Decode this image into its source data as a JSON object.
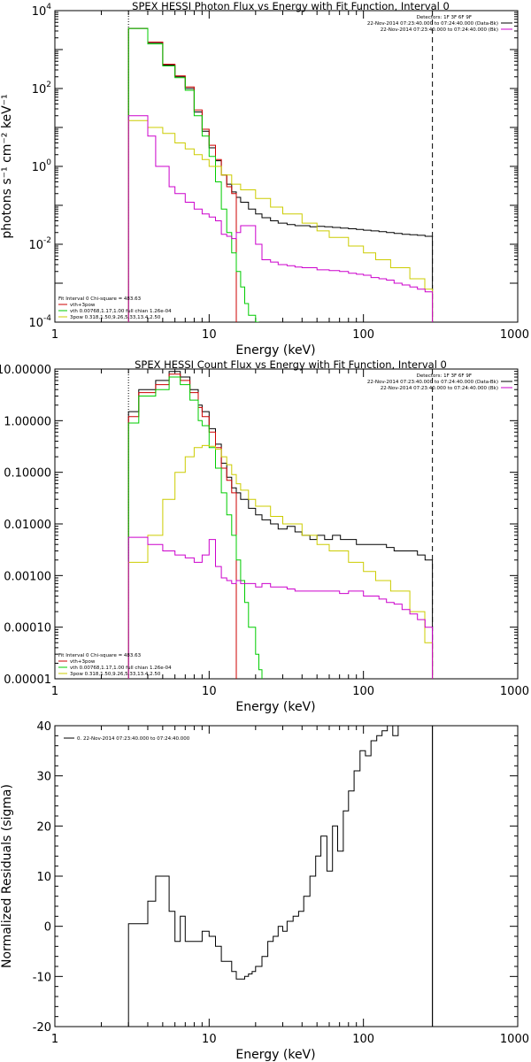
{
  "chart_data": [
    {
      "type": "line",
      "title": "SPEX HESSI Photon Flux vs Energy with Fit Function, Interval 0",
      "xlabel": "Energy (keV)",
      "ylabel": "photons s⁻¹ cm⁻² keV⁻¹",
      "xscale": "log",
      "yscale": "log",
      "xlim": [
        1,
        1000
      ],
      "ylim": [
        0.0001,
        10000
      ],
      "x_ticks": [
        "1",
        "10",
        "100",
        "1000"
      ],
      "y_ticks": [
        {
          "value": 0.0001,
          "base": "10",
          "exp": "-4"
        },
        {
          "value": 0.01,
          "base": "10",
          "exp": "-2"
        },
        {
          "value": 1,
          "base": "10",
          "exp": "0"
        },
        {
          "value": 100,
          "base": "10",
          "exp": "2"
        },
        {
          "value": 10000,
          "base": "10",
          "exp": "4"
        }
      ],
      "grid": false,
      "vlines": [
        {
          "x": 3,
          "style": "dotted"
        },
        {
          "x": 280,
          "style": "dashed"
        }
      ],
      "legend_top_right": [
        {
          "text": "Detectors: 1F 3F 6F 9F",
          "color": ""
        },
        {
          "text": "22-Nov-2014 07:23:40.000 to 07:24:40.000 (Data-Bk)",
          "color": "#000000"
        },
        {
          "text": "22-Nov-2014 07:23:40.000 to 07:24:40.000 (Bk)",
          "color": "#cc00cc"
        }
      ],
      "legend_bottom_left": [
        {
          "text": "Fit Interval 0   Chi-square = 483.63",
          "color": ""
        },
        {
          "text": "vth+3pow",
          "color": "#cc0000"
        },
        {
          "text": "vth 0.00768,1.17,1.00  full chian 1.26e-04",
          "color": "#00cc00"
        },
        {
          "text": "3pow 0.318,1.50,9.26,5.33,13.4,2.50",
          "color": "#cccc00"
        }
      ],
      "series": [
        {
          "color": "#000000",
          "x": [
            3,
            3.5,
            4,
            4.5,
            5,
            5.5,
            6,
            6.5,
            7,
            7.5,
            8,
            8.5,
            9,
            10,
            11,
            12,
            13,
            14,
            15,
            16,
            18,
            20,
            22,
            25,
            28,
            32,
            36,
            40,
            45,
            50,
            56,
            63,
            71,
            80,
            90,
            100,
            112,
            126,
            141,
            158,
            178,
            200,
            224,
            251,
            280
          ],
          "y": [
            3500,
            3500,
            1500,
            1500,
            400,
            400,
            200,
            200,
            100,
            100,
            25,
            25,
            8,
            3,
            1.4,
            0.6,
            0.35,
            0.22,
            0.16,
            0.12,
            0.08,
            0.06,
            0.048,
            0.04,
            0.035,
            0.032,
            0.03,
            0.03,
            0.028,
            0.029,
            0.028,
            0.027,
            0.026,
            0.025,
            0.024,
            0.023,
            0.022,
            0.021,
            0.02,
            0.019,
            0.018,
            0.0175,
            0.017,
            0.016,
            0.016
          ]
        },
        {
          "color": "#cc0000",
          "x": [
            3,
            3.5,
            4,
            4.5,
            5,
            5.5,
            6,
            6.5,
            7,
            7.5,
            8,
            8.5,
            9,
            10,
            11,
            12,
            13,
            14,
            15
          ],
          "y": [
            3500,
            3500,
            1550,
            1550,
            420,
            420,
            210,
            210,
            110,
            110,
            28,
            28,
            9,
            3.5,
            1.5,
            0.6,
            0.3,
            0.2,
            0.15
          ]
        },
        {
          "color": "#00cc00",
          "x": [
            3,
            3.5,
            4,
            4.5,
            5,
            5.5,
            6,
            6.5,
            7,
            7.5,
            8,
            8.5,
            9,
            10,
            11,
            12,
            13,
            14,
            15,
            16,
            17,
            18,
            20,
            21
          ],
          "y": [
            3500,
            3500,
            1400,
            1400,
            380,
            380,
            190,
            190,
            90,
            90,
            20,
            20,
            6,
            1.8,
            0.4,
            0.08,
            0.02,
            0.006,
            0.002,
            0.0008,
            0.0003,
            0.00015,
            0.0001,
            0.0001
          ]
        },
        {
          "color": "#cccc00",
          "x": [
            3,
            4,
            5,
            6,
            7,
            8,
            9,
            10,
            12,
            14,
            16,
            20,
            25,
            30,
            40,
            50,
            60,
            80,
            100,
            120,
            150,
            200,
            250,
            280
          ],
          "y": [
            15,
            10,
            7,
            4,
            2.8,
            2,
            1.5,
            1,
            0.6,
            0.35,
            0.25,
            0.15,
            0.09,
            0.06,
            0.035,
            0.022,
            0.015,
            0.009,
            0.006,
            0.004,
            0.0025,
            0.0013,
            0.0007,
            0.0001
          ]
        },
        {
          "color": "#cc00cc",
          "x": [
            3,
            3.5,
            4,
            4.5,
            5,
            5.5,
            6,
            7,
            8,
            9,
            10,
            11,
            12,
            13,
            14,
            15,
            16,
            18,
            20,
            22,
            25,
            28,
            32,
            36,
            40,
            50,
            60,
            70,
            80,
            90,
            100,
            112,
            126,
            141,
            158,
            178,
            200,
            224,
            251,
            280
          ],
          "y": [
            20,
            20,
            6,
            1,
            1,
            0.3,
            0.2,
            0.12,
            0.08,
            0.06,
            0.05,
            0.04,
            0.018,
            0.016,
            0.014,
            0.02,
            0.03,
            0.03,
            0.01,
            0.004,
            0.0035,
            0.003,
            0.0028,
            0.0026,
            0.0025,
            0.0022,
            0.0021,
            0.002,
            0.0018,
            0.0017,
            0.0016,
            0.0014,
            0.0013,
            0.0012,
            0.001,
            0.0009,
            0.0008,
            0.0007,
            0.0006,
            0.0005
          ]
        }
      ]
    },
    {
      "type": "line",
      "title": "SPEX HESSI Count Flux vs Energy with Fit Function, Interval 0",
      "xlabel": "Energy (keV)",
      "ylabel": "",
      "xscale": "log",
      "yscale": "log",
      "xlim": [
        1,
        1000
      ],
      "ylim": [
        1e-05,
        10
      ],
      "x_ticks": [
        "1",
        "10",
        "100",
        "1000"
      ],
      "y_ticks": [
        {
          "value": 1e-05,
          "label": "0.00001"
        },
        {
          "value": 0.0001,
          "label": "0.00010"
        },
        {
          "value": 0.001,
          "label": "0.00100"
        },
        {
          "value": 0.01,
          "label": "0.01000"
        },
        {
          "value": 0.1,
          "label": "0.10000"
        },
        {
          "value": 1,
          "label": "1.00000"
        },
        {
          "value": 10,
          "label": "10.00000"
        }
      ],
      "grid": false,
      "vlines": [
        {
          "x": 3,
          "style": "dotted"
        },
        {
          "x": 280,
          "style": "dashed"
        }
      ],
      "legend_top_right": [
        {
          "text": "Detectors: 1F 3F 6F 9F",
          "color": ""
        },
        {
          "text": "22-Nov-2014 07:23:40.000 to 07:24:40.000 (Data-Bk)",
          "color": "#000000"
        },
        {
          "text": "22-Nov-2014 07:23:40.000 to 07:24:40.000 (Bk)",
          "color": "#cc00cc"
        }
      ],
      "legend_bottom_left": [
        {
          "text": "Fit Interval 0   Chi-square = 483.63",
          "color": ""
        },
        {
          "text": "vth+3pow",
          "color": "#cc0000"
        },
        {
          "text": "vth 0.00768,1.17,1.00  full chian 1.26e-04",
          "color": "#00cc00"
        },
        {
          "text": "3pow 0.318,1.50,9.26,5.33,13.4,2.50",
          "color": "#cccc00"
        }
      ],
      "series": [
        {
          "color": "#000000",
          "x": [
            3,
            3.5,
            4,
            4.5,
            5,
            5.5,
            6,
            6.5,
            7,
            7.5,
            8,
            8.5,
            9,
            10,
            11,
            12,
            13,
            14,
            15,
            16,
            18,
            20,
            22,
            25,
            28,
            32,
            36,
            40,
            45,
            50,
            56,
            63,
            71,
            80,
            90,
            100,
            112,
            126,
            141,
            158,
            178,
            200,
            224,
            251,
            280
          ],
          "y": [
            1.5,
            4,
            4,
            6,
            6,
            9,
            9,
            7,
            7,
            4,
            4,
            2,
            1.5,
            0.7,
            0.35,
            0.15,
            0.08,
            0.05,
            0.04,
            0.03,
            0.02,
            0.015,
            0.012,
            0.01,
            0.008,
            0.009,
            0.007,
            0.006,
            0.005,
            0.006,
            0.005,
            0.006,
            0.005,
            0.005,
            0.004,
            0.004,
            0.004,
            0.004,
            0.0035,
            0.003,
            0.003,
            0.003,
            0.0025,
            0.002,
            0.002
          ]
        },
        {
          "color": "#cc0000",
          "x": [
            3,
            3.5,
            4,
            4.5,
            5,
            5.5,
            6,
            6.5,
            7,
            7.5,
            8,
            8.5,
            9,
            10,
            11,
            12,
            13,
            14,
            15
          ],
          "y": [
            1.2,
            3.5,
            3.5,
            5,
            5,
            8,
            8,
            6,
            6,
            3.5,
            3.5,
            1.8,
            1.2,
            0.6,
            0.3,
            0.12,
            0.07,
            0.04,
            0.035
          ]
        },
        {
          "color": "#00cc00",
          "x": [
            3,
            3.5,
            4,
            4.5,
            5,
            5.5,
            6,
            6.5,
            7,
            7.5,
            8,
            8.5,
            9,
            10,
            11,
            12,
            13,
            14,
            15,
            16,
            17,
            18,
            20,
            21,
            22
          ],
          "y": [
            0.9,
            3,
            3,
            4,
            4,
            7,
            7,
            5,
            5,
            2.5,
            2.5,
            1,
            0.8,
            0.3,
            0.12,
            0.04,
            0.015,
            0.006,
            0.002,
            0.0008,
            0.0003,
            0.0001,
            3e-05,
            1.5e-05,
            1e-05
          ]
        },
        {
          "color": "#cccc00",
          "x": [
            3,
            4,
            5,
            6,
            7,
            8,
            9,
            10,
            11,
            12,
            13,
            14,
            15,
            16,
            18,
            20,
            25,
            30,
            40,
            50,
            60,
            80,
            100,
            120,
            150,
            200,
            250,
            280
          ],
          "y": [
            0.0018,
            0.006,
            0.03,
            0.1,
            0.2,
            0.3,
            0.33,
            0.32,
            0.28,
            0.2,
            0.14,
            0.09,
            0.06,
            0.045,
            0.03,
            0.022,
            0.014,
            0.01,
            0.006,
            0.004,
            0.003,
            0.0018,
            0.0012,
            0.0008,
            0.0005,
            0.0002,
            5e-05,
            1e-05
          ]
        },
        {
          "color": "#cc00cc",
          "x": [
            3,
            3.5,
            4,
            4.5,
            5,
            5.5,
            6,
            7,
            8,
            9,
            10,
            11,
            12,
            13,
            14,
            15,
            16,
            18,
            20,
            22,
            25,
            28,
            32,
            36,
            40,
            50,
            60,
            70,
            80,
            90,
            100,
            112,
            126,
            141,
            158,
            178,
            200,
            224,
            251,
            280
          ],
          "y": [
            0.0055,
            0.0055,
            0.004,
            0.004,
            0.003,
            0.003,
            0.0025,
            0.0022,
            0.0018,
            0.0025,
            0.005,
            0.0015,
            0.0009,
            0.0008,
            0.0007,
            0.0008,
            0.0007,
            0.0007,
            0.0006,
            0.0007,
            0.0006,
            0.0006,
            0.00055,
            0.0005,
            0.0005,
            0.0005,
            0.0005,
            0.00045,
            0.0005,
            0.0005,
            0.0004,
            0.0004,
            0.00035,
            0.0003,
            0.00028,
            0.00022,
            0.00018,
            0.00014,
            0.0001,
            5e-05
          ]
        }
      ]
    },
    {
      "type": "line",
      "title": "",
      "xlabel": "Energy (keV)",
      "ylabel": "Normalized Residuals (sigma)",
      "xscale": "log",
      "yscale": "linear",
      "xlim": [
        1,
        1000
      ],
      "ylim": [
        -20,
        40
      ],
      "x_ticks": [
        "1",
        "10",
        "100",
        "1000"
      ],
      "y_ticks": [
        {
          "value": -20,
          "label": "-20"
        },
        {
          "value": -10,
          "label": "-10"
        },
        {
          "value": 0,
          "label": "0"
        },
        {
          "value": 10,
          "label": "10"
        },
        {
          "value": 20,
          "label": "20"
        },
        {
          "value": 30,
          "label": "30"
        },
        {
          "value": 40,
          "label": "40"
        }
      ],
      "grid": false,
      "vlines": [
        {
          "x": 280,
          "style": "solid"
        }
      ],
      "legend_top_left": [
        {
          "text": "0. 22-Nov-2014 07:23:40.000 to 07:24:40.000",
          "color": "#000000"
        }
      ],
      "series": [
        {
          "color": "#000000",
          "x": [
            3,
            4,
            4.5,
            5.5,
            6,
            6.5,
            7,
            8,
            9,
            10,
            11,
            12,
            13,
            14,
            15,
            17,
            18,
            19,
            20,
            22,
            24,
            26,
            28,
            30,
            32,
            35,
            38,
            41,
            45,
            49,
            53,
            58,
            63,
            68,
            74,
            80,
            87,
            95,
            103,
            112,
            122,
            132,
            143,
            155,
            168,
            182,
            197,
            214,
            232,
            251,
            270,
            280
          ],
          "y": [
            0.5,
            5,
            10,
            3,
            -3,
            2,
            -3,
            -3,
            -1,
            -2,
            -4,
            -7,
            -7,
            -9,
            -10.5,
            -10,
            -9.5,
            -9,
            -8,
            -6,
            -3,
            -2,
            0,
            -1,
            1,
            2,
            3,
            6,
            10,
            14,
            18,
            11,
            20,
            15,
            23,
            27,
            31,
            35,
            34,
            37,
            38,
            39,
            40,
            38,
            40,
            40,
            40,
            40,
            40,
            40,
            40,
            40
          ]
        }
      ]
    }
  ]
}
